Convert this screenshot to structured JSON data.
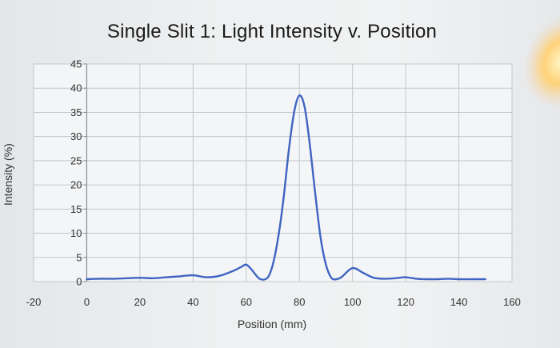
{
  "chart_data": {
    "type": "line",
    "title": "Single Slit 1: Light Intensity v. Position",
    "xlabel": "Position (mm)",
    "ylabel": "Intensity (%)",
    "xlim": [
      -20,
      160
    ],
    "ylim": [
      0,
      45
    ],
    "xticks": [
      "-20",
      "0",
      "20",
      "40",
      "60",
      "80",
      "100",
      "120",
      "140",
      "160"
    ],
    "yticks": [
      "0",
      "5",
      "10",
      "15",
      "20",
      "25",
      "30",
      "35",
      "40",
      "45"
    ],
    "grid": true,
    "line_color": "#3f64c2",
    "series": [
      {
        "x": [
          0,
          5,
          10,
          15,
          20,
          25,
          30,
          35,
          40,
          45,
          50,
          55,
          58,
          60,
          62,
          65,
          68,
          70,
          72,
          74,
          76,
          78,
          80,
          82,
          84,
          86,
          88,
          90,
          92,
          94,
          96,
          100,
          104,
          108,
          112,
          116,
          120,
          124,
          128,
          132,
          136,
          140,
          145,
          150
        ],
        "y": [
          0.5,
          0.6,
          0.6,
          0.7,
          0.8,
          0.7,
          0.9,
          1.1,
          1.3,
          0.9,
          1.2,
          2.2,
          3.0,
          3.5,
          2.5,
          0.6,
          0.8,
          3.5,
          9.0,
          17.0,
          27.0,
          35.0,
          38.5,
          36.0,
          28.0,
          18.0,
          9.0,
          3.5,
          0.8,
          0.5,
          1.0,
          2.8,
          1.8,
          0.8,
          0.6,
          0.7,
          0.9,
          0.6,
          0.5,
          0.5,
          0.6,
          0.5,
          0.5,
          0.5
        ]
      }
    ]
  }
}
